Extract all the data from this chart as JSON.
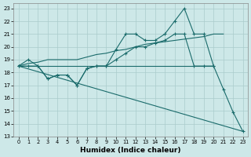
{
  "xlabel": "Humidex (Indice chaleur)",
  "xlim": [
    -0.5,
    23.5
  ],
  "ylim": [
    13,
    23.4
  ],
  "yticks": [
    13,
    14,
    15,
    16,
    17,
    18,
    19,
    20,
    21,
    22,
    23
  ],
  "xticks": [
    0,
    1,
    2,
    3,
    4,
    5,
    6,
    7,
    8,
    9,
    10,
    11,
    12,
    13,
    14,
    15,
    16,
    17,
    18,
    19,
    20,
    21,
    22,
    23
  ],
  "bg_color": "#cde8e8",
  "grid_color": "#aacccc",
  "line_color": "#1a6b6b",
  "series": [
    {
      "x": [
        0,
        1,
        2,
        3,
        4,
        5,
        6,
        7,
        8,
        9,
        10,
        11,
        12,
        13,
        14,
        15,
        16,
        17,
        18,
        19,
        20,
        21,
        22,
        23
      ],
      "y": [
        18.5,
        19.0,
        18.5,
        17.5,
        17.8,
        17.8,
        17.0,
        18.3,
        18.5,
        18.5,
        19.8,
        21.0,
        21.0,
        20.5,
        20.5,
        21.0,
        22.0,
        23.0,
        21.0,
        21.0,
        18.5,
        16.7,
        14.9,
        13.4
      ],
      "marker": "+"
    },
    {
      "x": [
        0,
        1,
        2,
        3,
        4,
        5,
        6,
        7,
        8,
        9,
        10,
        11,
        12,
        13,
        14,
        15,
        16,
        17,
        18,
        19,
        20
      ],
      "y": [
        18.5,
        18.5,
        18.5,
        17.5,
        17.8,
        17.8,
        17.0,
        18.3,
        18.5,
        18.5,
        19.0,
        19.5,
        20.0,
        20.0,
        20.3,
        20.5,
        21.0,
        21.0,
        18.5,
        18.5,
        18.5
      ],
      "marker": "+"
    },
    {
      "x": [
        0,
        1,
        2,
        3,
        4,
        5,
        6,
        7,
        8,
        9,
        10,
        11,
        12,
        13,
        14,
        15,
        16,
        17,
        18,
        19,
        20,
        21
      ],
      "y": [
        18.5,
        18.7,
        18.8,
        19.0,
        19.0,
        19.0,
        19.0,
        19.2,
        19.4,
        19.5,
        19.7,
        19.8,
        20.0,
        20.2,
        20.3,
        20.4,
        20.5,
        20.6,
        20.7,
        20.8,
        21.0,
        21.0
      ],
      "marker": null
    },
    {
      "x": [
        0,
        20
      ],
      "y": [
        18.5,
        18.5
      ],
      "marker": null
    },
    {
      "x": [
        0,
        23
      ],
      "y": [
        18.5,
        13.4
      ],
      "marker": null
    }
  ]
}
